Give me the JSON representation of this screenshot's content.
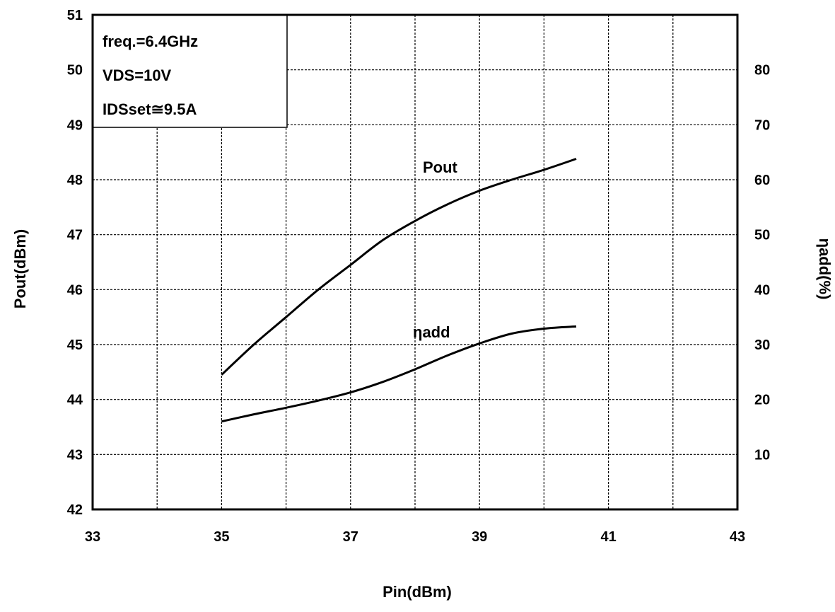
{
  "chart_data": {
    "type": "line",
    "xlabel": "Pin(dBm)",
    "ylabel": "Pout(dBm)",
    "y2label": "ηadd(%)",
    "xlim": [
      33,
      43
    ],
    "ylim": [
      42,
      51
    ],
    "y2lim": [
      0,
      90
    ],
    "x_ticks": [
      33,
      35,
      37,
      39,
      41,
      43
    ],
    "y_ticks": [
      42,
      43,
      44,
      45,
      46,
      47,
      48,
      49,
      50,
      51
    ],
    "y2_ticks": [
      10,
      20,
      30,
      40,
      50,
      60,
      70,
      80
    ],
    "grid": true,
    "series": [
      {
        "name": "Pout",
        "axis": "left",
        "x": [
          35,
          35.5,
          36,
          36.5,
          37,
          37.5,
          38,
          38.5,
          39,
          39.5,
          40,
          40.5
        ],
        "values": [
          44.45,
          45.0,
          45.5,
          46.0,
          46.45,
          46.9,
          47.25,
          47.55,
          47.8,
          48.0,
          48.18,
          48.38
        ]
      },
      {
        "name": "ηadd",
        "axis": "right",
        "x": [
          35,
          35.5,
          36,
          36.5,
          37,
          37.5,
          38,
          38.5,
          39,
          39.5,
          40,
          40.5
        ],
        "values": [
          16.0,
          17.3,
          18.5,
          19.8,
          21.3,
          23.2,
          25.5,
          28.0,
          30.2,
          32.0,
          32.9,
          33.3
        ]
      }
    ],
    "conditions": [
      "freq.=6.4GHz",
      "VDS=10V",
      "IDSset≅9.5A"
    ]
  }
}
